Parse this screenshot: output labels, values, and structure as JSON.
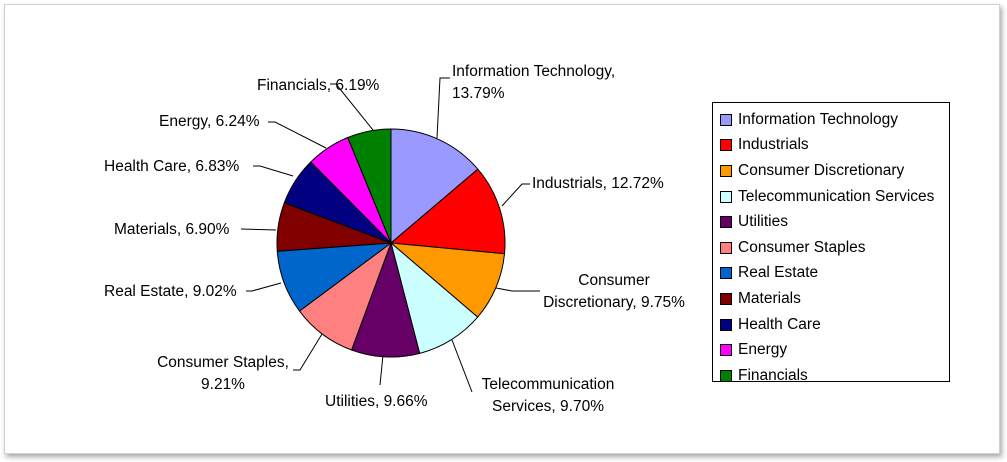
{
  "chart_data": {
    "type": "pie",
    "title": "",
    "legend_position": "right",
    "categories": [
      "Information Technology",
      "Industrials",
      "Consumer Discretionary",
      "Telecommunication Services",
      "Utilities",
      "Consumer Staples",
      "Real Estate",
      "Materials",
      "Health Care",
      "Energy",
      "Financials"
    ],
    "values": [
      13.79,
      12.72,
      9.75,
      9.7,
      9.66,
      9.21,
      9.02,
      6.9,
      6.83,
      6.24,
      6.19
    ],
    "slices": [
      {
        "name": "Information Technology",
        "value": 13.79,
        "color": "#9999FF",
        "label_lines": [
          "Information Technology,",
          "13.79%"
        ]
      },
      {
        "name": "Industrials",
        "value": 12.72,
        "color": "#FF0000",
        "label_lines": [
          "Industrials, 12.72%"
        ]
      },
      {
        "name": "Consumer Discretionary",
        "value": 9.75,
        "color": "#FF9900",
        "label_lines": [
          "Consumer",
          "Discretionary, 9.75%"
        ]
      },
      {
        "name": "Telecommunication Services",
        "value": 9.7,
        "color": "#CCFFFF",
        "label_lines": [
          "Telecommunication",
          "Services, 9.70%"
        ]
      },
      {
        "name": "Utilities",
        "value": 9.66,
        "color": "#660066",
        "label_lines": [
          "Utilities, 9.66%"
        ]
      },
      {
        "name": "Consumer Staples",
        "value": 9.21,
        "color": "#FF8080",
        "label_lines": [
          "Consumer Staples,",
          "9.21%"
        ]
      },
      {
        "name": "Real Estate",
        "value": 9.02,
        "color": "#0066CC",
        "label_lines": [
          "Real Estate, 9.02%"
        ]
      },
      {
        "name": "Materials",
        "value": 6.9,
        "color": "#800000",
        "label_lines": [
          "Materials, 6.90%"
        ]
      },
      {
        "name": "Health Care",
        "value": 6.83,
        "color": "#000080",
        "label_lines": [
          "Health Care, 6.83%"
        ]
      },
      {
        "name": "Energy",
        "value": 6.24,
        "color": "#FF00FF",
        "label_lines": [
          "Energy, 6.24%"
        ]
      },
      {
        "name": "Financials",
        "value": 6.19,
        "color": "#008000",
        "label_lines": [
          "Financials, 6.19%"
        ]
      }
    ]
  }
}
